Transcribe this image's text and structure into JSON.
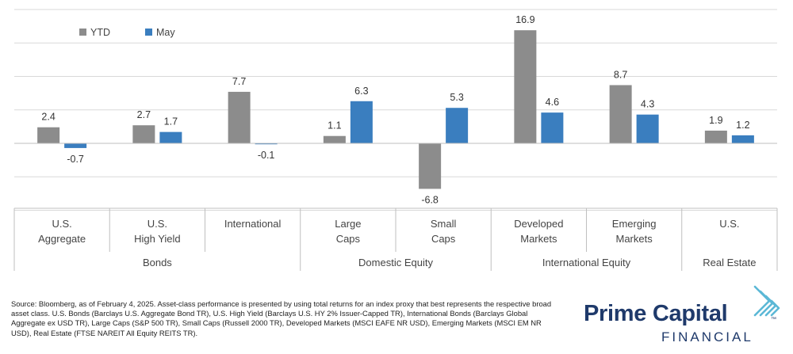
{
  "chart_data": {
    "type": "bar",
    "legend_position": "top-left",
    "grid": true,
    "ylim": [
      -10,
      20
    ],
    "series": [
      {
        "name": "YTD",
        "color": "#8c8c8c",
        "values": [
          2.4,
          2.7,
          7.7,
          1.1,
          -6.8,
          16.9,
          8.7,
          1.9
        ]
      },
      {
        "name": "May",
        "color": "#3a7ebf",
        "values": [
          -0.7,
          1.7,
          -0.1,
          6.3,
          5.3,
          4.6,
          4.3,
          1.2
        ]
      }
    ],
    "value_labels": {
      "YTD": [
        "2.4",
        "2.7",
        "7.7",
        "1.1",
        "-6.8",
        "16.9",
        "8.7",
        "1.9"
      ],
      "May": [
        "-0.7",
        "1.7",
        "-0.1",
        "6.3",
        "5.3",
        "4.6",
        "4.3",
        "1.2"
      ]
    },
    "categories": [
      [
        "U.S.",
        "Aggregate"
      ],
      [
        "U.S.",
        "High Yield"
      ],
      [
        "International"
      ],
      [
        "Large",
        "Caps"
      ],
      [
        "Small",
        "Caps"
      ],
      [
        "Developed",
        "Markets"
      ],
      [
        "Emerging",
        "Markets"
      ],
      [
        "U.S."
      ]
    ],
    "groups": [
      {
        "label": "Bonds",
        "span": 3
      },
      {
        "label": "Domestic Equity",
        "span": 2
      },
      {
        "label": "International Equity",
        "span": 2
      },
      {
        "label": "Real Estate",
        "span": 1
      }
    ]
  },
  "footnote": "Source: Bloomberg, as of February 4, 2025. Asset-class performance is presented by using total returns for an index proxy that best represents the respective broad asset class. U.S. Bonds (Barclays U.S. Aggregate Bond TR), U.S. High Yield (Barclays U.S. HY 2% Issuer-Capped TR), International Bonds (Barclays Global Aggregate ex USD TR), Large Caps (S&P 500 TR), Small Caps (Russell 2000 TR), Developed Markets (MSCI EAFE NR USD), Emerging Markets (MSCI EM NR USD), Real Estate (FTSE NAREIT All Equity REITS TR).",
  "logo": {
    "name": "Prime Capital",
    "sub": "FINANCIAL",
    "tm": "™",
    "brand_color": "#1f3a6b",
    "accent_color": "#5bb8d6"
  }
}
